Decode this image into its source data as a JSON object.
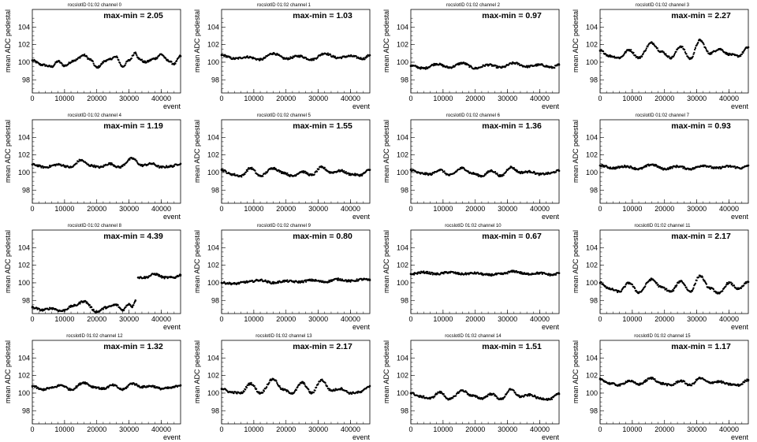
{
  "chart_data": [
    {
      "type": "scatter",
      "title": "rocslotID 01:02    channel  0",
      "annotation": "max-min = 2.05",
      "xlabel": "event",
      "ylabel": "mean ADC pedestal",
      "xlim": [
        0,
        46000
      ],
      "ylim": [
        96.5,
        106
      ],
      "xticks": [
        "0",
        "10000",
        "20000",
        "30000",
        "40000"
      ],
      "yticks": [
        "98",
        "100",
        "102",
        "104"
      ],
      "x": [
        0,
        3000,
        6000,
        8000,
        10000,
        13000,
        16000,
        18000,
        20000,
        23000,
        26000,
        28000,
        30000,
        32000,
        33000,
        35000,
        38000,
        40000,
        42000,
        44000,
        46000
      ],
      "y": [
        100.2,
        99.7,
        99.5,
        100.1,
        99.6,
        100.2,
        100.8,
        100.3,
        99.4,
        100.2,
        100.6,
        99.5,
        100.2,
        101.1,
        100.4,
        100.0,
        100.4,
        100.9,
        100.2,
        99.8,
        100.7
      ]
    },
    {
      "type": "scatter",
      "title": "rocslotID 01:02    channel  1",
      "annotation": "max-min = 1.03",
      "xlabel": "event",
      "ylabel": "mean ADC pedestal",
      "xlim": [
        0,
        46000
      ],
      "ylim": [
        96.5,
        106
      ],
      "xticks": [
        "0",
        "10000",
        "20000",
        "30000",
        "40000"
      ],
      "yticks": [
        "98",
        "100",
        "102",
        "104"
      ],
      "x": [
        0,
        4000,
        8000,
        12000,
        16000,
        20000,
        24000,
        28000,
        32000,
        36000,
        40000,
        44000,
        46000
      ],
      "y": [
        100.8,
        100.4,
        100.6,
        100.3,
        101.0,
        100.4,
        100.7,
        100.3,
        101.0,
        100.5,
        100.7,
        100.4,
        100.8
      ]
    },
    {
      "type": "scatter",
      "title": "rocslotID 01:02    channel  2",
      "annotation": "max-min = 0.97",
      "xlabel": "event",
      "ylabel": "mean ADC pedestal",
      "xlim": [
        0,
        46000
      ],
      "ylim": [
        96.5,
        106
      ],
      "xticks": [
        "0",
        "10000",
        "20000",
        "30000",
        "40000"
      ],
      "yticks": [
        "98",
        "100",
        "102",
        "104"
      ],
      "x": [
        0,
        4000,
        8000,
        12000,
        16000,
        20000,
        24000,
        28000,
        32000,
        36000,
        40000,
        44000,
        46000
      ],
      "y": [
        99.6,
        99.3,
        99.8,
        99.4,
        99.9,
        99.3,
        99.7,
        99.4,
        99.9,
        99.5,
        99.7,
        99.4,
        99.7
      ]
    },
    {
      "type": "scatter",
      "title": "rocslotID 01:02    channel  3",
      "annotation": "max-min = 2.27",
      "xlabel": "event",
      "ylabel": "mean ADC pedestal",
      "xlim": [
        0,
        46000
      ],
      "ylim": [
        96.5,
        106
      ],
      "xticks": [
        "0",
        "10000",
        "20000",
        "30000",
        "40000"
      ],
      "yticks": [
        "98",
        "100",
        "102",
        "104"
      ],
      "x": [
        0,
        3000,
        6000,
        9000,
        12000,
        16000,
        19000,
        22000,
        25000,
        28000,
        31000,
        34000,
        37000,
        40000,
        43000,
        46000
      ],
      "y": [
        101.3,
        100.7,
        100.5,
        101.4,
        100.5,
        102.2,
        101.2,
        100.5,
        101.8,
        100.4,
        102.5,
        101.0,
        101.5,
        100.9,
        100.7,
        101.7
      ]
    },
    {
      "type": "scatter",
      "title": "rocslotID 01:02    channel  4",
      "annotation": "max-min = 1.19",
      "xlabel": "event",
      "ylabel": "mean ADC pedestal",
      "xlim": [
        0,
        46000
      ],
      "ylim": [
        96.5,
        106
      ],
      "xticks": [
        "0",
        "10000",
        "20000",
        "30000",
        "40000"
      ],
      "yticks": [
        "98",
        "100",
        "102",
        "104"
      ],
      "x": [
        0,
        4000,
        8000,
        12000,
        15000,
        18000,
        21000,
        24000,
        27000,
        31000,
        34000,
        37000,
        40000,
        43000,
        46000
      ],
      "y": [
        100.9,
        100.6,
        100.9,
        100.6,
        101.4,
        100.8,
        100.6,
        101.0,
        100.6,
        101.6,
        100.8,
        101.0,
        100.6,
        100.7,
        101.0
      ]
    },
    {
      "type": "scatter",
      "title": "rocslotID 01:02    channel  5",
      "annotation": "max-min = 1.55",
      "xlabel": "event",
      "ylabel": "mean ADC pedestal",
      "xlim": [
        0,
        46000
      ],
      "ylim": [
        96.5,
        106
      ],
      "xticks": [
        "0",
        "10000",
        "20000",
        "30000",
        "40000"
      ],
      "yticks": [
        "98",
        "100",
        "102",
        "104"
      ],
      "x": [
        0,
        3000,
        6000,
        9000,
        12000,
        16000,
        19000,
        22000,
        25000,
        28000,
        31000,
        34000,
        37000,
        40000,
        43000,
        46000
      ],
      "y": [
        100.3,
        99.8,
        99.6,
        100.5,
        99.6,
        100.5,
        100.0,
        99.6,
        100.1,
        99.7,
        100.6,
        100.0,
        100.2,
        99.8,
        99.7,
        100.3
      ]
    },
    {
      "type": "scatter",
      "title": "rocslotID 01:02    channel  6",
      "annotation": "max-min = 1.36",
      "xlabel": "event",
      "ylabel": "mean ADC pedestal",
      "xlim": [
        0,
        46000
      ],
      "ylim": [
        96.5,
        106
      ],
      "xticks": [
        "0",
        "10000",
        "20000",
        "30000",
        "40000"
      ],
      "yticks": [
        "98",
        "100",
        "102",
        "104"
      ],
      "x": [
        0,
        3000,
        6000,
        9000,
        12000,
        16000,
        19000,
        22000,
        25000,
        28000,
        31000,
        34000,
        37000,
        40000,
        43000,
        46000
      ],
      "y": [
        100.3,
        99.9,
        99.8,
        100.3,
        99.7,
        100.5,
        99.9,
        99.6,
        100.2,
        99.6,
        100.6,
        100.0,
        100.1,
        99.8,
        99.9,
        100.2
      ]
    },
    {
      "type": "scatter",
      "title": "rocslotID 01:02    channel  7",
      "annotation": "max-min = 0.93",
      "xlabel": "event",
      "ylabel": "mean ADC pedestal",
      "xlim": [
        0,
        46000
      ],
      "ylim": [
        96.5,
        106
      ],
      "xticks": [
        "0",
        "10000",
        "20000",
        "30000",
        "40000"
      ],
      "yticks": [
        "98",
        "100",
        "102",
        "104"
      ],
      "x": [
        0,
        4000,
        8000,
        12000,
        16000,
        20000,
        24000,
        28000,
        32000,
        36000,
        40000,
        44000,
        46000
      ],
      "y": [
        100.8,
        100.5,
        100.7,
        100.4,
        100.9,
        100.4,
        100.7,
        100.4,
        100.8,
        100.5,
        100.7,
        100.5,
        100.8
      ]
    },
    {
      "type": "scatter",
      "title": "rocslotID 01:02    channel  8",
      "annotation": "max-min = 4.39",
      "xlabel": "event",
      "ylabel": "mean ADC pedestal",
      "xlim": [
        0,
        46000
      ],
      "ylim": [
        96.5,
        106
      ],
      "xticks": [
        "0",
        "10000",
        "20000",
        "30000",
        "40000"
      ],
      "yticks": [
        "98",
        "100",
        "102",
        "104"
      ],
      "x": [
        0,
        3000,
        6000,
        9000,
        13000,
        16000,
        20000,
        23000,
        26000,
        28000,
        30000,
        31000,
        32000,
        32800,
        35000,
        38000,
        41000,
        44000,
        46000
      ],
      "y": [
        97.2,
        96.9,
        97.1,
        96.8,
        97.4,
        97.9,
        96.7,
        97.2,
        97.5,
        96.9,
        97.6,
        97.3,
        98.0,
        100.6,
        100.6,
        101.0,
        100.6,
        100.6,
        100.9
      ]
    },
    {
      "type": "scatter",
      "title": "rocslotID 01:02    channel  9",
      "annotation": "max-min = 0.80",
      "xlabel": "event",
      "ylabel": "mean ADC pedestal",
      "xlim": [
        0,
        46000
      ],
      "ylim": [
        96.5,
        106
      ],
      "xticks": [
        "0",
        "10000",
        "20000",
        "30000",
        "40000"
      ],
      "yticks": [
        "98",
        "100",
        "102",
        "104"
      ],
      "x": [
        0,
        4000,
        8000,
        12000,
        16000,
        20000,
        24000,
        28000,
        32000,
        36000,
        40000,
        44000,
        46000
      ],
      "y": [
        100.0,
        99.9,
        100.1,
        100.3,
        100.0,
        100.2,
        100.1,
        100.3,
        100.1,
        100.4,
        100.2,
        100.4,
        100.3
      ]
    },
    {
      "type": "scatter",
      "title": "rocslotID 01:02    channel  10",
      "annotation": "max-min = 0.67",
      "xlabel": "event",
      "ylabel": "mean ADC pedestal",
      "xlim": [
        0,
        46000
      ],
      "ylim": [
        96.5,
        106
      ],
      "xticks": [
        "0",
        "10000",
        "20000",
        "30000",
        "40000"
      ],
      "yticks": [
        "98",
        "100",
        "102",
        "104"
      ],
      "x": [
        0,
        4000,
        8000,
        12000,
        16000,
        20000,
        24000,
        28000,
        32000,
        36000,
        40000,
        44000,
        46000
      ],
      "y": [
        101.0,
        101.2,
        101.0,
        101.2,
        101.0,
        101.1,
        100.9,
        101.0,
        101.3,
        101.0,
        101.1,
        100.9,
        101.1
      ]
    },
    {
      "type": "scatter",
      "title": "rocslotID 01:02    channel  11",
      "annotation": "max-min = 2.17",
      "xlabel": "event",
      "ylabel": "mean ADC pedestal",
      "xlim": [
        0,
        46000
      ],
      "ylim": [
        96.5,
        106
      ],
      "xticks": [
        "0",
        "10000",
        "20000",
        "30000",
        "40000"
      ],
      "yticks": [
        "98",
        "100",
        "102",
        "104"
      ],
      "x": [
        0,
        3000,
        6000,
        9000,
        12000,
        16000,
        19000,
        22000,
        25000,
        28000,
        31000,
        34000,
        37000,
        40000,
        43000,
        46000
      ],
      "y": [
        100.0,
        99.3,
        99.0,
        100.0,
        98.9,
        100.4,
        99.5,
        99.0,
        100.2,
        99.0,
        100.8,
        99.4,
        98.8,
        100.0,
        99.3,
        100.1
      ]
    },
    {
      "type": "scatter",
      "title": "rocslotID 01:02    channel  12",
      "annotation": "max-min = 1.32",
      "xlabel": "event",
      "ylabel": "mean ADC pedestal",
      "xlim": [
        0,
        46000
      ],
      "ylim": [
        96.5,
        106
      ],
      "xticks": [
        "0",
        "10000",
        "20000",
        "30000",
        "40000"
      ],
      "yticks": [
        "98",
        "100",
        "102",
        "104"
      ],
      "x": [
        0,
        3000,
        6000,
        9000,
        12000,
        16000,
        19000,
        22000,
        25000,
        28000,
        31000,
        34000,
        37000,
        40000,
        43000,
        46000
      ],
      "y": [
        100.8,
        100.4,
        100.6,
        100.9,
        100.4,
        101.2,
        100.7,
        100.5,
        100.9,
        100.4,
        101.1,
        100.7,
        100.8,
        100.5,
        100.6,
        100.9
      ]
    },
    {
      "type": "scatter",
      "title": "rocslotID 01:02    channel  13",
      "annotation": "max-min = 2.17",
      "xlabel": "event",
      "ylabel": "mean ADC pedestal",
      "xlim": [
        0,
        46000
      ],
      "ylim": [
        96.5,
        106
      ],
      "xticks": [
        "0",
        "10000",
        "20000",
        "30000",
        "40000"
      ],
      "yticks": [
        "98",
        "100",
        "102",
        "104"
      ],
      "x": [
        0,
        3000,
        6000,
        9000,
        12000,
        16000,
        19000,
        22000,
        25000,
        28000,
        31000,
        34000,
        37000,
        40000,
        43000,
        46000
      ],
      "y": [
        100.5,
        100.1,
        100.0,
        101.1,
        100.0,
        101.6,
        100.4,
        100.0,
        101.2,
        100.0,
        101.5,
        100.3,
        100.5,
        100.0,
        100.1,
        100.8
      ]
    },
    {
      "type": "scatter",
      "title": "rocslotID 01:02    channel  14",
      "annotation": "max-min = 1.51",
      "xlabel": "event",
      "ylabel": "mean ADC pedestal",
      "xlim": [
        0,
        46000
      ],
      "ylim": [
        96.5,
        106
      ],
      "xticks": [
        "0",
        "10000",
        "20000",
        "30000",
        "40000"
      ],
      "yticks": [
        "98",
        "100",
        "102",
        "104"
      ],
      "x": [
        0,
        3000,
        6000,
        9000,
        12000,
        16000,
        19000,
        22000,
        25000,
        28000,
        31000,
        34000,
        37000,
        40000,
        43000,
        46000
      ],
      "y": [
        100.0,
        99.6,
        99.4,
        100.1,
        99.3,
        100.3,
        99.7,
        99.4,
        99.9,
        99.3,
        100.4,
        99.6,
        99.8,
        99.4,
        99.3,
        99.9
      ]
    },
    {
      "type": "scatter",
      "title": "rocslotID 01:02    channel  15",
      "annotation": "max-min = 1.17",
      "xlabel": "event",
      "ylabel": "mean ADC pedestal",
      "xlim": [
        0,
        46000
      ],
      "ylim": [
        96.5,
        106
      ],
      "xticks": [
        "0",
        "10000",
        "20000",
        "30000",
        "40000"
      ],
      "yticks": [
        "98",
        "100",
        "102",
        "104"
      ],
      "x": [
        0,
        3000,
        6000,
        9000,
        12000,
        16000,
        19000,
        22000,
        25000,
        28000,
        31000,
        34000,
        37000,
        40000,
        43000,
        46000
      ],
      "y": [
        101.6,
        101.1,
        100.9,
        101.4,
        101.0,
        101.7,
        101.1,
        100.9,
        101.4,
        100.9,
        101.7,
        101.2,
        101.3,
        101.0,
        100.9,
        101.5
      ]
    }
  ]
}
